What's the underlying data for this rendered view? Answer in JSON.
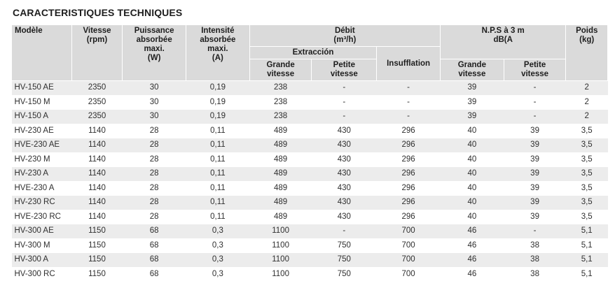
{
  "title": "CARACTERISTIQUES TECHNIQUES",
  "headers": {
    "modele": "Modèle",
    "vitesse": "Vitesse\n(rpm)",
    "puissance": "Puissance\nabsorbée\nmaxi.\n(W)",
    "intensite": "Intensité\nabsorbée\nmaxi.\n(A)",
    "debit": "Débit\n(m³/h)",
    "extraccion": "Extracción",
    "grande_vitesse": "Grande\nvitesse",
    "petite_vitesse": "Petite\nvitesse",
    "insufflation": "Insufflation",
    "nps": "N.P.S à 3 m\ndB(A",
    "nps_grande": "Grande\nvitesse",
    "nps_petite": "Petite\nvitesse",
    "poids": "Poids\n(kg)"
  },
  "rows": [
    [
      "HV-150 AE",
      "2350",
      "30",
      "0,19",
      "238",
      "-",
      "-",
      "39",
      "-",
      "2"
    ],
    [
      "HV-150 M",
      "2350",
      "30",
      "0,19",
      "238",
      "-",
      "-",
      "39",
      "-",
      "2"
    ],
    [
      "HV-150 A",
      "2350",
      "30",
      "0,19",
      "238",
      "-",
      "-",
      "39",
      "-",
      "2"
    ],
    [
      "HV-230 AE",
      "1140",
      "28",
      "0,11",
      "489",
      "430",
      "296",
      "40",
      "39",
      "3,5"
    ],
    [
      "HVE-230 AE",
      "1140",
      "28",
      "0,11",
      "489",
      "430",
      "296",
      "40",
      "39",
      "3,5"
    ],
    [
      "HV-230 M",
      "1140",
      "28",
      "0,11",
      "489",
      "430",
      "296",
      "40",
      "39",
      "3,5"
    ],
    [
      "HV-230 A",
      "1140",
      "28",
      "0,11",
      "489",
      "430",
      "296",
      "40",
      "39",
      "3,5"
    ],
    [
      "HVE-230 A",
      "1140",
      "28",
      "0,11",
      "489",
      "430",
      "296",
      "40",
      "39",
      "3,5"
    ],
    [
      "HV-230 RC",
      "1140",
      "28",
      "0,11",
      "489",
      "430",
      "296",
      "40",
      "39",
      "3,5"
    ],
    [
      "HVE-230 RC",
      "1140",
      "28",
      "0,11",
      "489",
      "430",
      "296",
      "40",
      "39",
      "3,5"
    ],
    [
      "HV-300 AE",
      "1150",
      "68",
      "0,3",
      "1100",
      "-",
      "700",
      "46",
      "-",
      "5,1"
    ],
    [
      "HV-300 M",
      "1150",
      "68",
      "0,3",
      "1100",
      "750",
      "700",
      "46",
      "38",
      "5,1"
    ],
    [
      "HV-300 A",
      "1150",
      "68",
      "0,3",
      "1100",
      "750",
      "700",
      "46",
      "38",
      "5,1"
    ],
    [
      "HV-300 RC",
      "1150",
      "68",
      "0,3",
      "1100",
      "750",
      "700",
      "46",
      "38",
      "5,1"
    ]
  ]
}
